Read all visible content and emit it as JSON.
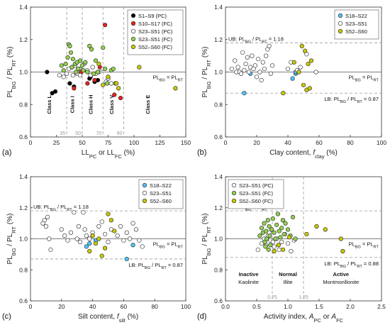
{
  "chart_data": [
    {
      "panel": "(a)",
      "type": "scatter",
      "xlabel": "LL_PC or LL_FC (%)",
      "ylabel": "PL_BG / PL_RT (%)",
      "xlim": [
        0,
        150
      ],
      "ylim": [
        0.6,
        1.4
      ],
      "xticks": [
        0,
        25,
        50,
        75,
        100,
        125,
        150
      ],
      "yticks": [
        0.6,
        0.8,
        1.0,
        1.2,
        1.4
      ],
      "hline": 1.0,
      "hline_label": "PL_BG = PL_RT",
      "class_boundaries": [
        35,
        50,
        70,
        90
      ],
      "classes": [
        {
          "label": "Class L",
          "x": 20
        },
        {
          "label": "Class I",
          "x": 42
        },
        {
          "label": "Class H",
          "x": 60
        },
        {
          "label": "Class V",
          "x": 80
        },
        {
          "label": "Class E",
          "x": 115
        }
      ],
      "legend_position": "top-right",
      "series": [
        {
          "name": "S1–S9 (PC)",
          "color": "#000000",
          "points": [
            [
              16,
              1.0
            ],
            [
              21,
              0.87
            ],
            [
              24,
              0.88
            ],
            [
              38,
              0.93
            ],
            [
              42,
              0.91
            ],
            [
              57,
              0.96
            ],
            [
              62,
              0.94
            ],
            [
              65,
              0.95
            ],
            [
              58,
              0.97
            ]
          ]
        },
        {
          "name": "S10–S17 (FC)",
          "color": "#e8201c",
          "points": [
            [
              42,
              0.9
            ],
            [
              49,
              1.0
            ],
            [
              55,
              0.93
            ],
            [
              62,
              0.95
            ],
            [
              67,
              1.03
            ],
            [
              72,
              1.29
            ],
            [
              81,
              0.86
            ],
            [
              87,
              0.84
            ]
          ]
        },
        {
          "name": "S23–S51 (PC)",
          "color": "#ffffff",
          "points": [
            [
              28,
              0.98
            ],
            [
              32,
              0.97
            ],
            [
              35,
              0.99
            ],
            [
              37,
              1.02
            ],
            [
              40,
              1.03
            ],
            [
              41,
              0.98
            ],
            [
              43,
              1.04
            ],
            [
              45,
              0.99
            ],
            [
              47,
              1.02
            ],
            [
              48,
              0.98
            ],
            [
              52,
              1.05
            ],
            [
              55,
              1.01
            ],
            [
              58,
              0.98
            ],
            [
              60,
              1.03
            ],
            [
              63,
              0.99
            ],
            [
              66,
              1.0
            ],
            [
              70,
              1.02
            ],
            [
              73,
              0.94
            ],
            [
              75,
              0.96
            ],
            [
              78,
              0.93
            ]
          ]
        },
        {
          "name": "S23–S51 (FC)",
          "color": "#92d050",
          "points": [
            [
              30,
              1.04
            ],
            [
              32,
              1.01
            ],
            [
              34,
              1.05
            ],
            [
              36,
              1.09
            ],
            [
              37,
              1.17
            ],
            [
              38,
              1.16
            ],
            [
              39,
              1.12
            ],
            [
              40,
              1.03
            ],
            [
              41,
              1.08
            ],
            [
              43,
              1.05
            ],
            [
              44,
              1.0
            ],
            [
              45,
              1.06
            ],
            [
              46,
              1.02
            ],
            [
              48,
              1.07
            ],
            [
              50,
              1.04
            ],
            [
              51,
              1.01
            ],
            [
              53,
              1.06
            ],
            [
              55,
              1.0
            ],
            [
              57,
              1.16
            ],
            [
              59,
              1.14
            ],
            [
              61,
              0.99
            ],
            [
              63,
              1.07
            ],
            [
              65,
              1.0
            ],
            [
              70,
              1.15
            ],
            [
              72,
              1.02
            ],
            [
              74,
              0.93
            ],
            [
              78,
              1.01
            ],
            [
              80,
              1.02
            ],
            [
              82,
              0.93
            ]
          ]
        },
        {
          "name": "S52–S60 (FC)",
          "color": "#c8c800",
          "points": [
            [
              66,
              1.05
            ],
            [
              70,
              0.92
            ],
            [
              75,
              0.97
            ],
            [
              85,
              0.9
            ],
            [
              105,
              1.03
            ],
            [
              140,
              0.9
            ],
            [
              83,
              0.93
            ]
          ]
        }
      ]
    },
    {
      "panel": "(b)",
      "type": "scatter",
      "xlabel": "Clay content, f_clay (%)",
      "ylabel": "PL_BG / PL_RT (%)",
      "xlim": [
        0,
        100
      ],
      "ylim": [
        0.6,
        1.4
      ],
      "xticks": [
        0,
        20,
        40,
        60,
        80,
        100
      ],
      "yticks": [
        0.6,
        0.8,
        1.0,
        1.2,
        1.4
      ],
      "hline": 1.0,
      "ub": 1.18,
      "lb": 0.87,
      "hline_label": "PL_BG = PL_RT",
      "ub_label": "UB: PL_BG / PL_RT = 1.18",
      "lb_label": "LB: PL_BG / PL_RT = 0.87",
      "legend_position": "top-right",
      "series": [
        {
          "name": "S18–S22",
          "color": "#4fc3f7",
          "points": [
            [
              12,
              0.87
            ],
            [
              16,
              0.99
            ],
            [
              43,
              0.96
            ],
            [
              45,
              0.99
            ],
            [
              45,
              1.0
            ]
          ]
        },
        {
          "name": "S23–S51",
          "color": "#ffffff",
          "points": [
            [
              4,
              1.02
            ],
            [
              6,
              1.07
            ],
            [
              7,
              1.0
            ],
            [
              8,
              1.03
            ],
            [
              9,
              1.0
            ],
            [
              10,
              0.99
            ],
            [
              11,
              1.12
            ],
            [
              12,
              1.01
            ],
            [
              13,
              1.05
            ],
            [
              14,
              1.09
            ],
            [
              15,
              1.0
            ],
            [
              16,
              1.03
            ],
            [
              17,
              1.1
            ],
            [
              18,
              1.02
            ],
            [
              19,
              1.04
            ],
            [
              20,
              0.97
            ],
            [
              21,
              1.08
            ],
            [
              22,
              1.0
            ],
            [
              23,
              0.95
            ],
            [
              24,
              1.06
            ],
            [
              25,
              1.02
            ],
            [
              26,
              1.1
            ],
            [
              27,
              1.14
            ],
            [
              28,
              1.16
            ],
            [
              29,
              0.99
            ],
            [
              30,
              1.04
            ],
            [
              40,
              1.02
            ],
            [
              42,
              1.06
            ],
            [
              46,
              1.01
            ],
            [
              48,
              1.03
            ],
            [
              52,
              1.11
            ],
            [
              58,
              1.0
            ]
          ]
        },
        {
          "name": "S52–S60",
          "color": "#c8c800",
          "points": [
            [
              37,
              0.87
            ],
            [
              44,
              1.06
            ],
            [
              47,
              1.0
            ],
            [
              49,
              1.16
            ],
            [
              50,
              0.92
            ],
            [
              51,
              1.13
            ],
            [
              52,
              0.89
            ],
            [
              53,
              1.05
            ],
            [
              54,
              0.9
            ],
            [
              55,
              1.07
            ]
          ]
        }
      ]
    },
    {
      "panel": "(c)",
      "type": "scatter",
      "xlabel": "Silt content, f_silt (%)",
      "ylabel": "PL_BG / PL_RT (%)",
      "xlim": [
        0,
        100
      ],
      "ylim": [
        0.6,
        1.4
      ],
      "xticks": [
        0,
        20,
        40,
        60,
        80,
        100
      ],
      "yticks": [
        0.6,
        0.8,
        1.0,
        1.2,
        1.4
      ],
      "hline": 1.0,
      "ub": 1.18,
      "lb": 0.87,
      "hline_label": "PL_BG = PL_RT",
      "ub_label": "UB: PL_BG / PL_RT = 1.18",
      "lb_label": "LB: PL_BG / PL_RT = 0.87",
      "legend_position": "top-right",
      "series": [
        {
          "name": "S18–S22",
          "color": "#4fc3f7",
          "points": [
            [
              36,
              0.95
            ],
            [
              38,
              0.97
            ],
            [
              42,
              0.99
            ],
            [
              62,
              0.87
            ],
            [
              66,
              0.96
            ]
          ]
        },
        {
          "name": "S23–S51",
          "color": "#ffffff",
          "points": [
            [
              8,
              1.1
            ],
            [
              9,
              1.12
            ],
            [
              10,
              1.08
            ],
            [
              11,
              1.14
            ],
            [
              12,
              1.0
            ],
            [
              13,
              0.93
            ],
            [
              20,
              1.06
            ],
            [
              22,
              1.02
            ],
            [
              24,
              0.99
            ],
            [
              26,
              1.04
            ],
            [
              28,
              1.17
            ],
            [
              30,
              1.0
            ],
            [
              31,
              1.08
            ],
            [
              32,
              0.98
            ],
            [
              34,
              1.17
            ],
            [
              35,
              1.06
            ],
            [
              36,
              1.02
            ],
            [
              38,
              1.0
            ],
            [
              40,
              1.04
            ],
            [
              44,
              1.08
            ],
            [
              46,
              1.11
            ],
            [
              48,
              1.03
            ],
            [
              50,
              0.98
            ],
            [
              52,
              1.06
            ],
            [
              56,
              1.02
            ],
            [
              58,
              1.08
            ],
            [
              60,
              0.99
            ],
            [
              62,
              1.04
            ],
            [
              64,
              1.0
            ],
            [
              66,
              1.1
            ],
            [
              68,
              1.06
            ],
            [
              70,
              0.99
            ],
            [
              72,
              0.95
            ]
          ]
        },
        {
          "name": "S52–S60",
          "color": "#c8c800",
          "points": [
            [
              38,
              0.92
            ],
            [
              40,
              1.02
            ],
            [
              42,
              0.97
            ],
            [
              44,
              1.0
            ],
            [
              46,
              0.89
            ],
            [
              48,
              0.94
            ],
            [
              50,
              1.16
            ],
            [
              52,
              1.12
            ],
            [
              54,
              1.05
            ]
          ]
        }
      ]
    },
    {
      "panel": "(d)",
      "type": "scatter",
      "xlabel": "Activity index, A_PC or A_FC",
      "ylabel": "PL_BG / PL_RT (%)",
      "xlim": [
        0,
        2.5
      ],
      "ylim": [
        0.6,
        1.4
      ],
      "xticks": [
        0,
        0.5,
        1.0,
        1.5,
        2.0,
        2.5
      ],
      "yticks": [
        0.6,
        0.8,
        1.0,
        1.2,
        1.4
      ],
      "hline": 1.0,
      "ub": 1.18,
      "lb": 0.88,
      "vlines": [
        0.75,
        1.25
      ],
      "hline_label": "PL_BG = PL_RT",
      "ub_label": "UB: PL_BG / PL_RT = 1.18",
      "lb_label": "LB: PL_BG / PL_RT = 0.88",
      "zones": [
        {
          "label": "Inactive",
          "sub": "Kaolinite"
        },
        {
          "label": "Normal",
          "sub": "Illite"
        },
        {
          "label": "Active",
          "sub": "Montmorillonite"
        }
      ],
      "legend_position": "top-left",
      "series": [
        {
          "name": "S23–S51 (PC)",
          "color": "#ffffff",
          "points": [
            [
              0.52,
              0.93
            ],
            [
              0.58,
              0.97
            ],
            [
              0.62,
              1.0
            ],
            [
              0.65,
              0.96
            ],
            [
              0.68,
              1.02
            ],
            [
              0.72,
              0.99
            ],
            [
              0.78,
              0.95
            ],
            [
              0.82,
              1.0
            ],
            [
              0.86,
              0.93
            ],
            [
              0.9,
              0.98
            ],
            [
              0.95,
              1.03
            ],
            [
              1.0,
              0.97
            ],
            [
              1.05,
              0.92
            ],
            [
              1.1,
              0.99
            ],
            [
              0.7,
              1.04
            ],
            [
              0.76,
              0.98
            ]
          ]
        },
        {
          "name": "S23–S51 (FC)",
          "color": "#92d050",
          "points": [
            [
              0.55,
              1.02
            ],
            [
              0.58,
              1.07
            ],
            [
              0.6,
              1.04
            ],
            [
              0.62,
              1.1
            ],
            [
              0.63,
              0.98
            ],
            [
              0.65,
              1.05
            ],
            [
              0.66,
              1.0
            ],
            [
              0.68,
              1.12
            ],
            [
              0.7,
              1.08
            ],
            [
              0.71,
              1.02
            ],
            [
              0.72,
              0.96
            ],
            [
              0.74,
              1.06
            ],
            [
              0.76,
              1.13
            ],
            [
              0.78,
              1.04
            ],
            [
              0.8,
              1.0
            ],
            [
              0.82,
              1.09
            ],
            [
              0.84,
              1.16
            ],
            [
              0.86,
              1.05
            ],
            [
              0.88,
              1.01
            ],
            [
              0.9,
              1.07
            ],
            [
              0.92,
              1.12
            ],
            [
              0.94,
              1.03
            ],
            [
              0.96,
              1.1
            ],
            [
              1.0,
              1.06
            ],
            [
              1.04,
              1.02
            ],
            [
              1.08,
              1.14
            ],
            [
              1.12,
              1.0
            ],
            [
              0.64,
              0.95
            ],
            [
              0.69,
              0.93
            ]
          ]
        },
        {
          "name": "S52–S60 (FC)",
          "color": "#c8c800",
          "points": [
            [
              0.78,
              0.92
            ],
            [
              0.85,
              0.96
            ],
            [
              0.92,
              0.93
            ],
            [
              1.02,
              1.01
            ],
            [
              1.3,
              1.03
            ],
            [
              1.46,
              1.08
            ],
            [
              1.6,
              1.06
            ],
            [
              1.85,
              1.0
            ],
            [
              1.88,
              0.92
            ]
          ]
        }
      ]
    }
  ]
}
